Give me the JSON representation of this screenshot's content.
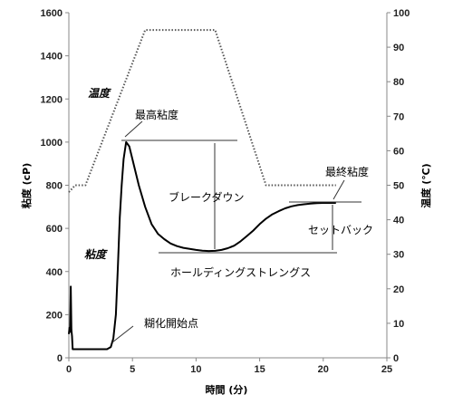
{
  "chart_data": {
    "type": "line",
    "xlabel": "時間 (分)",
    "ylabel_left": "粘度 (cP)",
    "ylabel_right": "温度 (℃)",
    "xlim": [
      0,
      25
    ],
    "xticks": [
      0,
      5,
      10,
      15,
      20,
      25
    ],
    "ylim_left": [
      0,
      1600
    ],
    "yticks_left": [
      0,
      200,
      400,
      600,
      800,
      1000,
      1200,
      1400,
      1600
    ],
    "ylim_right": [
      0,
      100
    ],
    "yticks_right": [
      0,
      10,
      20,
      30,
      40,
      50,
      60,
      70,
      80,
      90,
      100
    ],
    "grid": false,
    "series": [
      {
        "name": "粘度",
        "axis": "left",
        "style": "solid",
        "color": "#000000",
        "x": [
          0,
          0.05,
          0.1,
          0.15,
          0.2,
          0.25,
          0.3,
          0.4,
          0.5,
          1.0,
          1.5,
          2.0,
          2.5,
          3.0,
          3.3,
          3.5,
          3.7,
          3.85,
          4.0,
          4.15,
          4.3,
          4.5,
          4.75,
          5.0,
          5.5,
          6.0,
          6.5,
          7.0,
          7.5,
          8.0,
          8.5,
          9.0,
          9.5,
          10.0,
          10.5,
          11.0,
          11.5,
          12.0,
          12.5,
          13.0,
          13.5,
          14.0,
          14.5,
          15.0,
          15.5,
          16.0,
          16.5,
          17.0,
          17.5,
          18.0,
          18.5,
          19.0,
          19.5,
          20.0,
          20.5,
          21.0
        ],
        "y": [
          110,
          140,
          120,
          330,
          130,
          100,
          40,
          40,
          40,
          40,
          40,
          40,
          40,
          40,
          50,
          90,
          200,
          420,
          650,
          800,
          920,
          1000,
          980,
          920,
          800,
          700,
          620,
          575,
          550,
          530,
          518,
          510,
          505,
          500,
          497,
          495,
          496,
          500,
          508,
          520,
          540,
          565,
          590,
          620,
          645,
          665,
          680,
          693,
          702,
          708,
          712,
          715,
          717,
          718,
          718,
          718
        ]
      },
      {
        "name": "温度",
        "axis": "right",
        "style": "dotted",
        "color": "#555555",
        "x": [
          0,
          0.5,
          1.0,
          1.3,
          6.0,
          11.5,
          15.5,
          16.5,
          21.0
        ],
        "y": [
          48,
          50,
          50,
          50,
          95,
          95,
          50,
          50,
          50
        ]
      }
    ],
    "annotations": {
      "peak": "最高粘度",
      "breakdown": "ブレークダウン",
      "final": "最終粘度",
      "setback": "セットバック",
      "holding": "ホールディングストレングス",
      "onset": "糊化開始点"
    }
  }
}
